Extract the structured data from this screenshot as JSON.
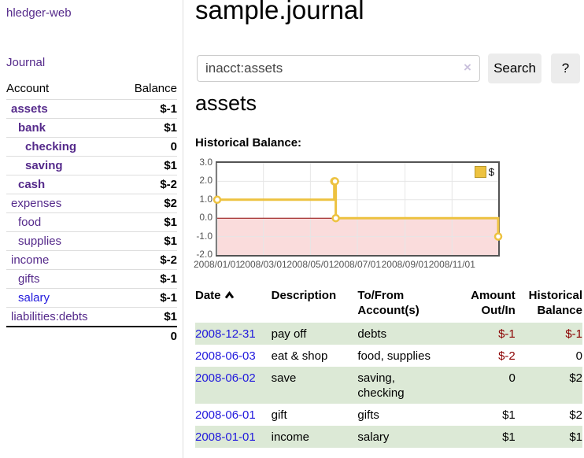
{
  "app": {
    "brand": "hledger-web",
    "nav_journal": "Journal"
  },
  "sidebar": {
    "header": {
      "account": "Account",
      "balance": "Balance"
    },
    "accounts": [
      {
        "name": "assets",
        "balance": "$-1"
      },
      {
        "name": "bank",
        "balance": "$1"
      },
      {
        "name": "checking",
        "balance": "0"
      },
      {
        "name": "saving",
        "balance": "$1"
      },
      {
        "name": "cash",
        "balance": "$-2"
      },
      {
        "name": "expenses",
        "balance": "$2"
      },
      {
        "name": "food",
        "balance": "$1"
      },
      {
        "name": "supplies",
        "balance": "$1"
      },
      {
        "name": "income",
        "balance": "$-2"
      },
      {
        "name": "gifts",
        "balance": "$-1"
      },
      {
        "name": "salary",
        "balance": "$-1"
      },
      {
        "name": "liabilities:debts",
        "balance": "$1"
      }
    ],
    "total": "0"
  },
  "header": {
    "title": "sample.journal"
  },
  "search": {
    "value": "inacct:assets",
    "clear_icon": "×",
    "button": "Search",
    "help_button": "?"
  },
  "account_page": {
    "title": "assets",
    "chart_label": "Historical Balance:"
  },
  "chart_data": {
    "type": "line",
    "style": "step",
    "title": "Historical Balance",
    "series": [
      {
        "name": "$",
        "color": "#edc240",
        "points": [
          [
            "2008-01-01",
            1
          ],
          [
            "2008-06-01",
            2
          ],
          [
            "2008-06-02",
            2
          ],
          [
            "2008-06-03",
            0
          ],
          [
            "2008-12-31",
            -1
          ]
        ]
      }
    ],
    "x_range": [
      "2008-01-01",
      "2008-12-31"
    ],
    "x_ticks": [
      "2008/01/01",
      "2008/03/01",
      "2008/05/01",
      "2008/07/01",
      "2008/09/01",
      "2008/11/01"
    ],
    "y_ticks": [
      "3.0",
      "2.0",
      "1.0",
      "0.0",
      "-1.0",
      "-2.0"
    ],
    "ylim": [
      -2,
      3
    ],
    "grid": true,
    "grid_color": "#e6e6e6",
    "negative_fill": "#fadcdc",
    "zero_line_color": "#8b0000",
    "legend": "$",
    "legend_position": "top-right"
  },
  "register": {
    "columns": [
      "Date",
      "Description",
      "To/From Account(s)",
      "Amount Out/In",
      "Historical Balance"
    ],
    "rows": [
      {
        "date": "2008-12-31",
        "description": "pay off",
        "accounts": "debts",
        "amount": "$-1",
        "balance": "$-1"
      },
      {
        "date": "2008-06-03",
        "description": "eat & shop",
        "accounts": "food, supplies",
        "amount": "$-2",
        "balance": "0"
      },
      {
        "date": "2008-06-02",
        "description": "save",
        "accounts": "saving,\nchecking",
        "amount": "0",
        "balance": "$2"
      },
      {
        "date": "2008-06-01",
        "description": "gift",
        "accounts": "gifts",
        "amount": "$1",
        "balance": "$2"
      },
      {
        "date": "2008-01-01",
        "description": "income",
        "accounts": "salary",
        "amount": "$1",
        "balance": "$1"
      }
    ]
  }
}
